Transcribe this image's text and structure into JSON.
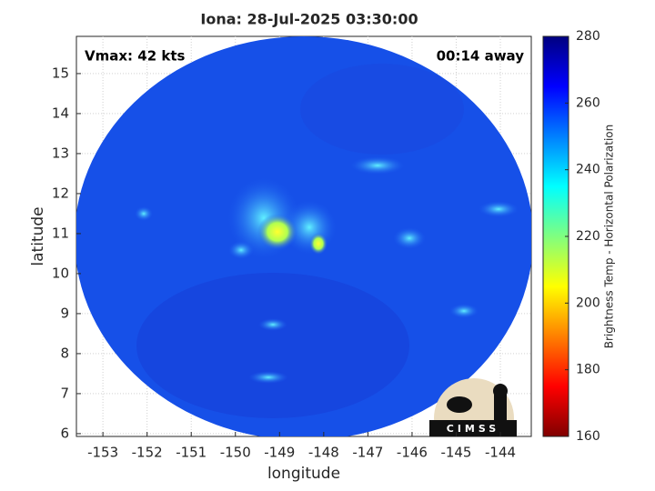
{
  "chart_data": {
    "type": "image",
    "title": "Iona: 28-Jul-2025 03:30:00",
    "xlabel": "longitude",
    "ylabel": "latitude",
    "xlim": [
      -153.6,
      -143.3
    ],
    "ylim": [
      5.93,
      15.93
    ],
    "xticks": [
      -153,
      -152,
      -151,
      -150,
      -149,
      -148,
      -147,
      -146,
      -145,
      -144
    ],
    "yticks": [
      6,
      7,
      8,
      9,
      10,
      11,
      12,
      13,
      14,
      15
    ],
    "grid": true,
    "annotations": [
      "Vmax: 42 kts",
      "00:14 away"
    ],
    "logo": "CIMSS",
    "colorbar": {
      "label": "Brightness Temp - Horizontal Polarization",
      "lim": [
        160,
        280
      ],
      "ticks": [
        160,
        180,
        200,
        220,
        240,
        260,
        280
      ]
    }
  }
}
